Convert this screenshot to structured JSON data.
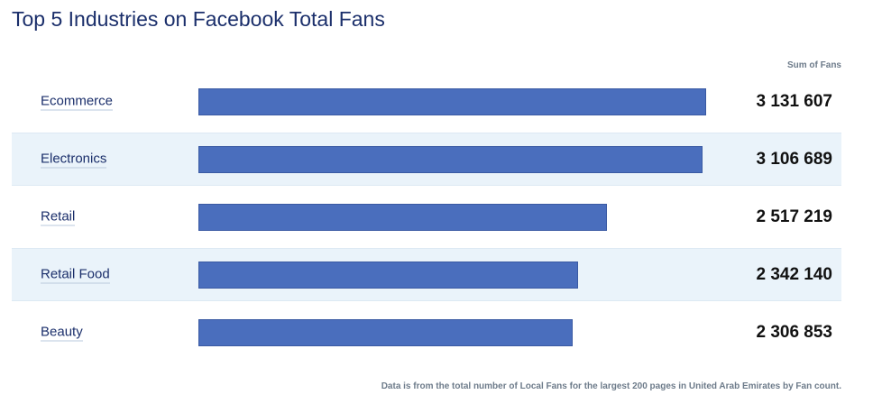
{
  "chart_data": {
    "type": "bar",
    "orientation": "horizontal",
    "title": "Top 5 Industries on Facebook Total Fans",
    "value_header": "Sum of Fans",
    "categories": [
      "Ecommerce",
      "Electronics",
      "Retail",
      "Retail Food",
      "Beauty"
    ],
    "values": [
      3131607,
      3106689,
      2517219,
      2342140,
      2306853
    ],
    "value_labels": [
      "3 131 607",
      "3 106 689",
      "2 517 219",
      "2 342 140",
      "2 306 853"
    ],
    "bar_color": "#4a6ebd",
    "footnote": "Data is from the total number of Local Fans for the largest 200 pages in United Arab Emirates by Fan count."
  }
}
